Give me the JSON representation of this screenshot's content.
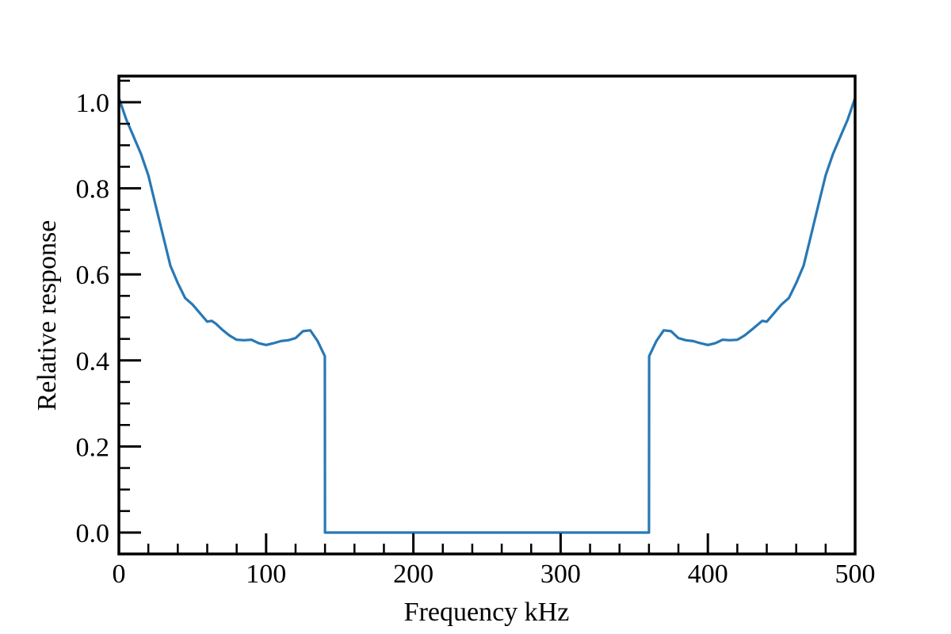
{
  "chart_data": {
    "type": "line",
    "title": "",
    "xlabel": "Frequency kHz",
    "ylabel": "Relative response",
    "xlim": [
      0,
      500
    ],
    "ylim": [
      -0.05,
      1.06
    ],
    "grid": false,
    "legend": null,
    "x_ticks": [
      0,
      100,
      200,
      300,
      400,
      500
    ],
    "x_tick_labels": [
      "0",
      "100",
      "200",
      "300",
      "400",
      "500"
    ],
    "x_minor_step": 20,
    "y_ticks": [
      0.0,
      0.2,
      0.4,
      0.6,
      0.8,
      1.0
    ],
    "y_tick_labels": [
      "0.0",
      "0.2",
      "0.4",
      "0.6",
      "0.8",
      "1.0"
    ],
    "y_minor_step": 0.05,
    "series": [
      {
        "name": "response",
        "color": "#2878b5",
        "x": [
          0,
          5,
          10,
          15,
          20,
          25,
          30,
          35,
          40,
          45,
          50,
          55,
          60,
          63,
          66,
          70,
          75,
          80,
          85,
          90,
          95,
          100,
          105,
          110,
          115,
          120,
          125,
          130,
          135,
          139.9,
          140,
          360,
          360.1,
          365,
          370,
          375,
          380,
          385,
          390,
          395,
          400,
          405,
          410,
          415,
          420,
          425,
          430,
          437,
          440,
          445,
          450,
          455,
          460,
          465,
          470,
          475,
          480,
          485,
          490,
          495,
          500
        ],
        "y": [
          1.01,
          0.96,
          0.92,
          0.88,
          0.83,
          0.76,
          0.69,
          0.62,
          0.58,
          0.545,
          0.53,
          0.51,
          0.49,
          0.492,
          0.485,
          0.472,
          0.458,
          0.448,
          0.447,
          0.448,
          0.44,
          0.436,
          0.44,
          0.445,
          0.447,
          0.452,
          0.468,
          0.47,
          0.445,
          0.41,
          0.0,
          0.0,
          0.41,
          0.445,
          0.47,
          0.468,
          0.452,
          0.447,
          0.445,
          0.44,
          0.436,
          0.44,
          0.448,
          0.447,
          0.448,
          0.458,
          0.472,
          0.492,
          0.49,
          0.51,
          0.53,
          0.545,
          0.58,
          0.62,
          0.69,
          0.76,
          0.83,
          0.88,
          0.92,
          0.96,
          1.01
        ]
      }
    ]
  }
}
